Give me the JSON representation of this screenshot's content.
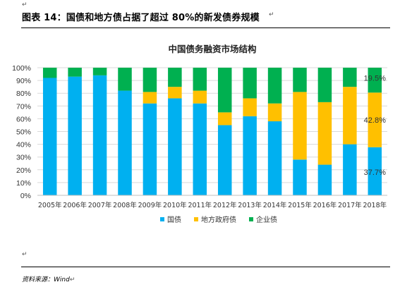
{
  "page": {
    "heading": "图表 14：国债和地方债占据了超过 80%的新发债券规模",
    "source": "资料来源：Wind",
    "return_mark": "↵"
  },
  "chart_data": {
    "type": "bar",
    "stacked": true,
    "title": "中国债务融资市场结构",
    "categories": [
      "2005年",
      "2006年",
      "2007年",
      "2008年",
      "2009年",
      "2010年",
      "2011年",
      "2012年",
      "2013年",
      "2014年",
      "2015年",
      "2016年",
      "2017年",
      "2018年"
    ],
    "series": [
      {
        "name": "国债",
        "color": "#00B0F0",
        "values": [
          92,
          93,
          94,
          82,
          72,
          76,
          72,
          55,
          62,
          58,
          28,
          24,
          40,
          37.7
        ]
      },
      {
        "name": "地方政府债",
        "color": "#FFC000",
        "values": [
          0,
          0,
          0,
          0,
          9,
          9,
          10,
          10,
          14,
          14,
          53,
          49,
          45,
          42.8
        ]
      },
      {
        "name": "企业债",
        "color": "#00B050",
        "values": [
          8,
          7,
          6,
          18,
          19,
          15,
          18,
          35,
          24,
          28,
          19,
          27,
          15,
          19.5
        ]
      }
    ],
    "y_ticks": [
      "0%",
      "10%",
      "20%",
      "30%",
      "40%",
      "50%",
      "60%",
      "70%",
      "80%",
      "90%",
      "100%"
    ],
    "ylim": [
      0,
      100
    ],
    "grid": true,
    "legend_position": "bottom",
    "data_labels": [
      {
        "category": "2018年",
        "series": "国债",
        "text": "37.7%"
      },
      {
        "category": "2018年",
        "series": "地方政府债",
        "text": "42.8%"
      },
      {
        "category": "2018年",
        "series": "企业债",
        "text": "19.5%"
      }
    ]
  }
}
